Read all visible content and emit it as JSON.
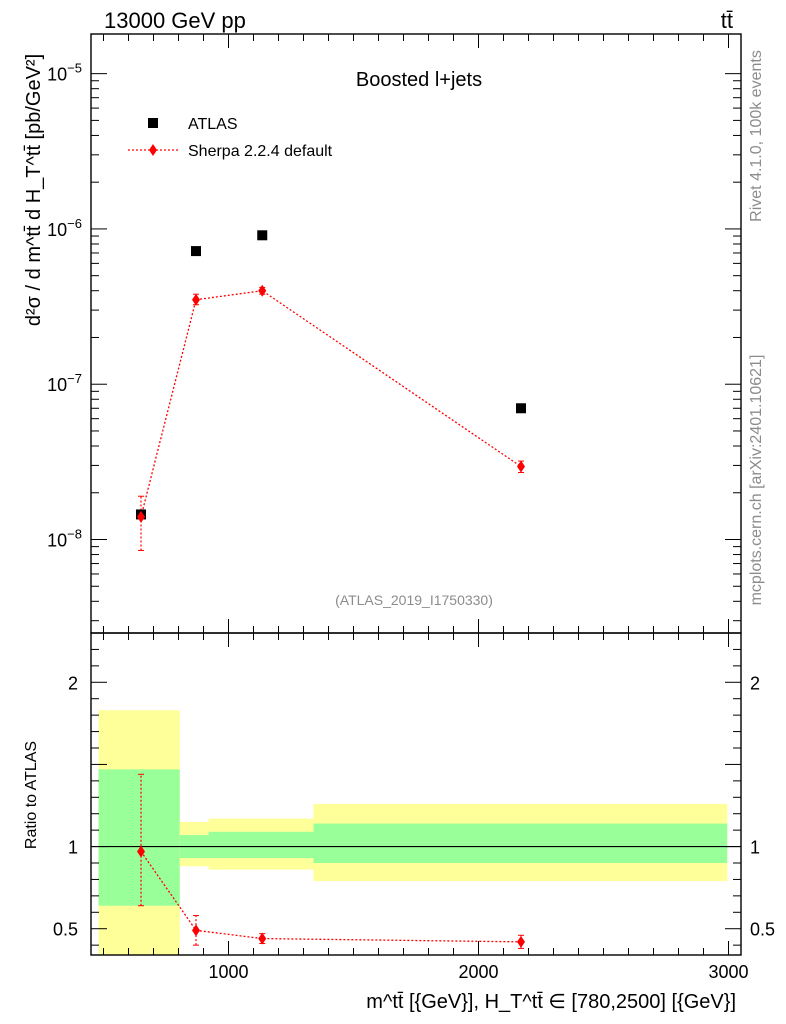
{
  "header": {
    "left_text": "13000 GeV pp",
    "right_text": "tt̄",
    "side_text_top": "Rivet 4.1.0,  100k events",
    "side_text_bottom": "mcplots.cern.ch [arXiv:2401.10621]"
  },
  "chart_data": [
    {
      "type": "scatter",
      "panel": "main",
      "title": "Boosted l+jets",
      "analysis_label": "(ATLAS_2019_I1750330)",
      "ylabel": "d²σ / d m^tt̄ d H_T^tt̄ [pb/GeV²]",
      "yscale": "log",
      "xlim": [
        450,
        3050
      ],
      "ylim": [
        2.5e-09,
        1.8e-05
      ],
      "y_ticks": [
        {
          "value": 1e-08,
          "label_base": "10",
          "label_exp": "−8"
        },
        {
          "value": 1e-07,
          "label_base": "10",
          "label_exp": "−7"
        },
        {
          "value": 1e-06,
          "label_base": "10",
          "label_exp": "−6"
        },
        {
          "value": 1e-05,
          "label_base": "10",
          "label_exp": "−5"
        }
      ],
      "legend": {
        "position": "top-left",
        "entries": [
          "ATLAS",
          "Sherpa 2.2.4 default"
        ]
      },
      "series": [
        {
          "name": "ATLAS",
          "marker": "square",
          "color": "#000000",
          "x": [
            650,
            870,
            1135,
            2170
          ],
          "y": [
            1.45e-08,
            7.2e-07,
            9.1e-07,
            7e-08
          ]
        },
        {
          "name": "Sherpa 2.2.4 default",
          "marker": "diamond",
          "color": "#ff0000",
          "line": "dotted",
          "x": [
            650,
            870,
            1135,
            2170
          ],
          "y": [
            1.4e-08,
            3.5e-07,
            4e-07,
            2.95e-08
          ],
          "y_err_low": [
            5.5e-09,
            2.5e-08,
            2e-08,
            2.5e-09
          ],
          "y_err_high": [
            5e-09,
            3e-08,
            2e-08,
            2.5e-09
          ]
        }
      ]
    },
    {
      "type": "scatter",
      "panel": "ratio",
      "ylabel": "Ratio to ATLAS",
      "xlabel": "m^tt̄ [{GeV}], H_T^tt̄ ∈ [780,2500] [{GeV}]",
      "xlim": [
        450,
        3050
      ],
      "ylim": [
        0.34,
        2.3
      ],
      "x_ticks": [
        1000,
        2000,
        3000
      ],
      "x_tick_labels": [
        "1000",
        "2000",
        "3000"
      ],
      "y_ticks": [
        0.5,
        1,
        2
      ],
      "y_tick_labels": [
        "0.5",
        "1",
        "2"
      ],
      "bands": [
        {
          "x_low": 480,
          "x_high": 805,
          "green_low": 0.64,
          "green_high": 1.47,
          "yellow_low": 0.34,
          "yellow_high": 1.83
        },
        {
          "x_low": 805,
          "x_high": 920,
          "green_low": 0.93,
          "green_high": 1.07,
          "yellow_low": 0.88,
          "yellow_high": 1.15
        },
        {
          "x_low": 920,
          "x_high": 1340,
          "green_low": 0.93,
          "green_high": 1.09,
          "yellow_low": 0.86,
          "yellow_high": 1.17
        },
        {
          "x_low": 1340,
          "x_high": 2995,
          "green_low": 0.9,
          "green_high": 1.14,
          "yellow_low": 0.79,
          "yellow_high": 1.26
        }
      ],
      "series": [
        {
          "name": "Sherpa 2.2.4 default",
          "marker": "diamond",
          "color": "#ff0000",
          "line": "dotted",
          "x": [
            650,
            870,
            1135,
            2170
          ],
          "y": [
            0.97,
            0.49,
            0.44,
            0.42
          ],
          "y_err_low": [
            0.33,
            0.09,
            0.03,
            0.04
          ],
          "y_err_high": [
            0.47,
            0.09,
            0.03,
            0.04
          ]
        }
      ]
    }
  ]
}
